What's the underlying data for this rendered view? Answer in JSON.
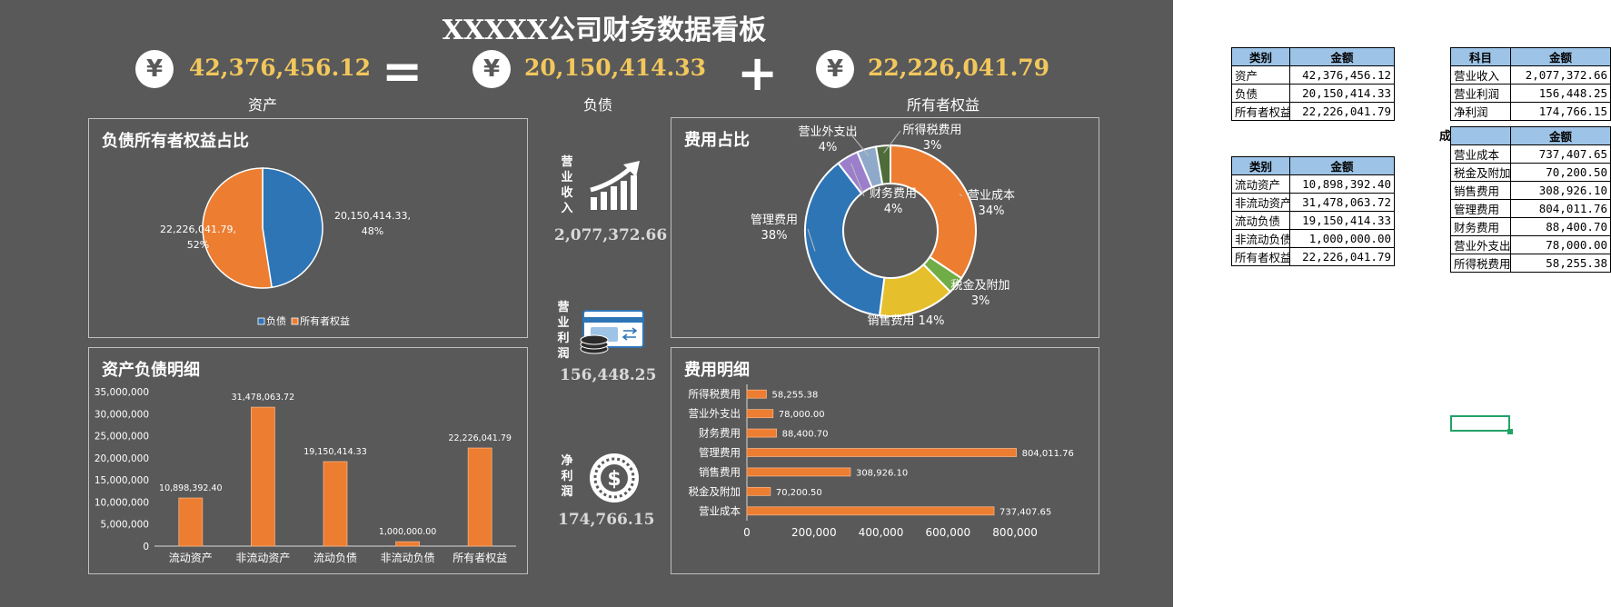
{
  "title": "XXXXX公司财务数据看板",
  "kpis": [
    {
      "icon": "yen-icon",
      "symbol": "¥",
      "value": "42,376,456.12",
      "label": "资产"
    },
    {
      "icon": "yen-icon",
      "symbol": "¥",
      "value": "20,150,414.33",
      "label": "负债"
    },
    {
      "icon": "yen-icon",
      "symbol": "¥",
      "value": "22,226,041.79",
      "label": "所有者权益"
    }
  ],
  "operators": {
    "eq": "=",
    "plus": "+"
  },
  "panels": {
    "pie_title": "负债所有者权益占比",
    "donut_title": "费用占比",
    "bar_title": "资产负债明细",
    "hbar_title": "费用明细"
  },
  "side_metrics": [
    {
      "label": "营业收入",
      "value": "2,077,372.66",
      "icon": "growth-chart-icon"
    },
    {
      "label": "营业利润",
      "value": "156,448.25",
      "icon": "card-coins-icon"
    },
    {
      "label": "净利润",
      "value": "174,766.15",
      "icon": "dollar-coin-icon"
    }
  ],
  "colors": {
    "blue": "#2e75b6",
    "orange": "#ed7d31",
    "gray": "#a5a5a5",
    "yellow": "#e6c02c",
    "green": "#70ad47",
    "purple": "#9b7fca",
    "steel": "#8ea9c9",
    "darkgreen": "#4e6b3a",
    "kpi": "#f2c75c"
  },
  "chart_data": [
    {
      "type": "pie",
      "title": "负债所有者权益占比",
      "series": [
        {
          "name": "负债",
          "value": 20150414.33,
          "label": "20,150,414.33,",
          "pct": "48%",
          "color": "#2e75b6"
        },
        {
          "name": "所有者权益",
          "value": 22226041.79,
          "label": "22,226,041.79,",
          "pct": "52%",
          "color": "#ed7d31"
        }
      ],
      "legend": [
        "负债",
        "所有者权益"
      ],
      "legend_position": "bottom"
    },
    {
      "type": "pie",
      "title": "费用占比",
      "hole": true,
      "slices": [
        {
          "name": "营业成本",
          "pct": "34%",
          "value": 737407.65,
          "color": "#ed7d31"
        },
        {
          "name": "税金及附加",
          "pct": "3%",
          "value": 70200.5,
          "color": "#70ad47"
        },
        {
          "name": "销售费用",
          "pct": "14%",
          "value": 308926.1,
          "color": "#e6c02c"
        },
        {
          "name": "管理费用",
          "pct": "38%",
          "value": 804011.76,
          "color": "#2e75b6"
        },
        {
          "name": "财务费用",
          "pct": "4%",
          "value": 88400.7,
          "color": "#9b7fca"
        },
        {
          "name": "营业外支出",
          "pct": "4%",
          "value": 78000.0,
          "color": "#8ea9c9"
        },
        {
          "name": "所得税费用",
          "pct": "3%",
          "value": 58255.38,
          "color": "#4e6b3a"
        }
      ]
    },
    {
      "type": "bar",
      "title": "资产负债明细",
      "categories": [
        "流动资产",
        "非流动资产",
        "流动负债",
        "非流动负债",
        "所有者权益"
      ],
      "values": [
        10898392.4,
        31478063.72,
        19150414.33,
        1000000.0,
        22226041.79
      ],
      "value_labels": [
        "10,898,392.40",
        "31,478,063.72",
        "19,150,414.33",
        "1,000,000.00",
        "22,226,041.79"
      ],
      "yticks": [
        "0",
        "5,000,000",
        "10,000,000",
        "15,000,000",
        "20,000,000",
        "25,000,000",
        "30,000,000",
        "35,000,000"
      ],
      "ylim": [
        0,
        35000000
      ],
      "color": "#ed7d31"
    },
    {
      "type": "bar",
      "orientation": "horizontal",
      "title": "费用明细",
      "categories": [
        "所得税费用",
        "营业外支出",
        "财务费用",
        "管理费用",
        "销售费用",
        "税金及附加",
        "营业成本"
      ],
      "values": [
        58255.38,
        78000.0,
        88400.7,
        804011.76,
        308926.1,
        70200.5,
        737407.65
      ],
      "value_labels": [
        "58,255.38",
        "78,000.00",
        "88,400.70",
        "804,011.76",
        "308,926.10",
        "70,200.50",
        "737,407.65"
      ],
      "xticks": [
        "0",
        "200,000",
        "400,000",
        "600,000",
        "800,000"
      ],
      "xlim": [
        0,
        900000
      ],
      "color": "#ed7d31"
    }
  ],
  "sheet": {
    "table1": {
      "headers": [
        "类别",
        "金额"
      ],
      "rows": [
        [
          "资产",
          "42,376,456.12"
        ],
        [
          "负债",
          "20,150,414.33"
        ],
        [
          "所有者权益",
          "22,226,041.79"
        ]
      ]
    },
    "table2": {
      "headers": [
        "类别",
        "金额"
      ],
      "rows": [
        [
          "流动资产",
          "10,898,392.40"
        ],
        [
          "非流动资产",
          "31,478,063.72"
        ],
        [
          "流动负债",
          "19,150,414.33"
        ],
        [
          "非流动负债",
          "1,000,000.00"
        ],
        [
          "所有者权益",
          "22,226,041.79"
        ]
      ]
    },
    "table3": {
      "headers": [
        "科目",
        "金额"
      ],
      "rows": [
        [
          "营业收入",
          "2,077,372.66"
        ],
        [
          "营业利润",
          "156,448.25"
        ],
        [
          "净利润",
          "174,766.15"
        ]
      ]
    },
    "table4_caption": "成本费用科",
    "table4": {
      "headers": [
        "",
        "金额"
      ],
      "rows": [
        [
          "营业成本",
          "737,407.65"
        ],
        [
          "税金及附加",
          "70,200.50"
        ],
        [
          "销售费用",
          "308,926.10"
        ],
        [
          "管理费用",
          "804,011.76"
        ],
        [
          "财务费用",
          "88,400.70"
        ],
        [
          "营业外支出",
          "78,000.00"
        ],
        [
          "所得税费用",
          "58,255.38"
        ]
      ]
    }
  }
}
